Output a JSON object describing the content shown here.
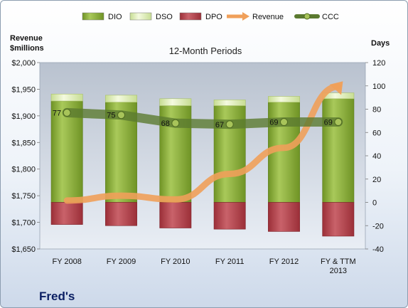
{
  "company_label": "Fred's",
  "chart_data": {
    "type": "bar",
    "title": "12-Month Periods",
    "ylabel_left": [
      "Revenue",
      "$millions"
    ],
    "ylabel_right": "Days",
    "categories": [
      [
        "FY 2008"
      ],
      [
        "FY 2009"
      ],
      [
        "FY 2010"
      ],
      [
        "FY 2011"
      ],
      [
        "FY 2012"
      ],
      [
        "FY & TTM",
        "2013"
      ]
    ],
    "left_axis": {
      "min": 1650,
      "max": 2000,
      "step": 50
    },
    "right_axis": {
      "min": -40,
      "max": 120,
      "step": 20
    },
    "left_ticks": [
      "$1,650",
      "$1,700",
      "$1,750",
      "$1,800",
      "$1,850",
      "$1,900",
      "$1,950",
      "$2,000"
    ],
    "right_ticks": [
      "-40",
      "-20",
      "0",
      "20",
      "40",
      "60",
      "80",
      "100",
      "120"
    ],
    "series": [
      {
        "name": "DIO",
        "axis": "right",
        "kind": "stack-up",
        "values": [
          87,
          86,
          83,
          83,
          86,
          89
        ],
        "color": "#8fb33a"
      },
      {
        "name": "DSO",
        "axis": "right",
        "kind": "stack-up",
        "values": [
          6,
          6,
          6,
          5,
          5,
          5
        ],
        "color": "#e4f0c4"
      },
      {
        "name": "DPO",
        "axis": "right",
        "kind": "stack-down",
        "values": [
          19,
          20,
          22,
          23,
          25,
          29
        ],
        "color": "#b5434b"
      },
      {
        "name": "Revenue",
        "axis": "left",
        "kind": "arrow-line",
        "values": [
          1741,
          1750,
          1743,
          1791,
          1840,
          1955
        ],
        "color": "#f0a05a"
      },
      {
        "name": "CCC",
        "axis": "right",
        "kind": "line-markers",
        "values": [
          77,
          75,
          68,
          67,
          69,
          69
        ],
        "color": "#5b7a30"
      }
    ],
    "data_labels": [
      "77",
      "75",
      "68",
      "67",
      "69",
      "69"
    ],
    "legend_position": "top",
    "grid": false
  }
}
